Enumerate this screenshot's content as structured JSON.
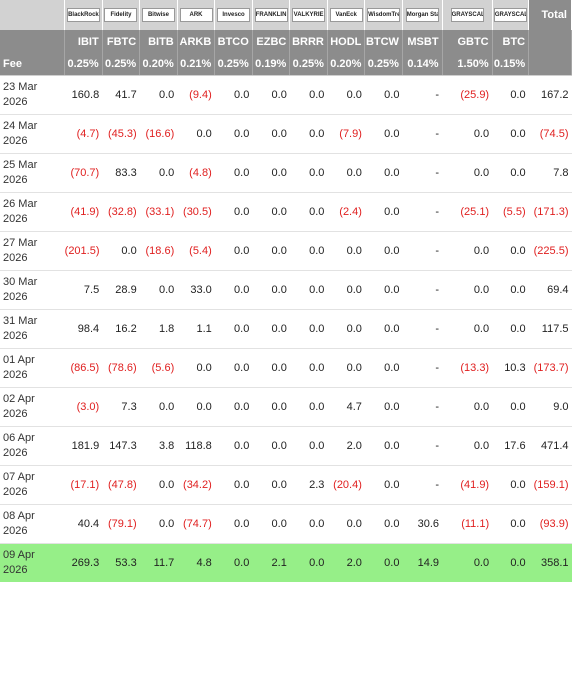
{
  "header": {
    "logos": [
      "BlackRock",
      "Fidelity",
      "Bitwise",
      "ARK",
      "Invesco",
      "FRANKLIN",
      "VALKYRIE",
      "VanEck",
      "WisdomTree",
      "Morgan Stanley",
      "GRAYSCALE",
      "GRAYSCALE"
    ],
    "total_label": "Total",
    "tickers": [
      "IBIT",
      "FBTC",
      "BITB",
      "ARKB",
      "BTCO",
      "EZBC",
      "BRRR",
      "HODL",
      "BTCW",
      "MSBT",
      "GBTC",
      "BTC"
    ],
    "fee_label": "Fee",
    "fees": [
      "0.25%",
      "0.25%",
      "0.20%",
      "0.21%",
      "0.25%",
      "0.19%",
      "0.25%",
      "0.20%",
      "0.25%",
      "0.14%",
      "1.50%",
      "0.15%"
    ]
  },
  "rows": [
    {
      "date_day": "23 Mar",
      "date_year": "2026",
      "values": [
        "160.8",
        "41.7",
        "0.0",
        "(9.4)",
        "0.0",
        "0.0",
        "0.0",
        "0.0",
        "0.0",
        "-",
        "(25.9)",
        "0.0"
      ],
      "total": "167.2"
    },
    {
      "date_day": "24 Mar",
      "date_year": "2026",
      "values": [
        "(4.7)",
        "(45.3)",
        "(16.6)",
        "0.0",
        "0.0",
        "0.0",
        "0.0",
        "(7.9)",
        "0.0",
        "-",
        "0.0",
        "0.0"
      ],
      "total": "(74.5)"
    },
    {
      "date_day": "25 Mar",
      "date_year": "2026",
      "values": [
        "(70.7)",
        "83.3",
        "0.0",
        "(4.8)",
        "0.0",
        "0.0",
        "0.0",
        "0.0",
        "0.0",
        "-",
        "0.0",
        "0.0"
      ],
      "total": "7.8"
    },
    {
      "date_day": "26 Mar",
      "date_year": "2026",
      "values": [
        "(41.9)",
        "(32.8)",
        "(33.1)",
        "(30.5)",
        "0.0",
        "0.0",
        "0.0",
        "(2.4)",
        "0.0",
        "-",
        "(25.1)",
        "(5.5)"
      ],
      "total": "(171.3)"
    },
    {
      "date_day": "27 Mar",
      "date_year": "2026",
      "values": [
        "(201.5)",
        "0.0",
        "(18.6)",
        "(5.4)",
        "0.0",
        "0.0",
        "0.0",
        "0.0",
        "0.0",
        "-",
        "0.0",
        "0.0"
      ],
      "total": "(225.5)"
    },
    {
      "date_day": "30 Mar",
      "date_year": "2026",
      "values": [
        "7.5",
        "28.9",
        "0.0",
        "33.0",
        "0.0",
        "0.0",
        "0.0",
        "0.0",
        "0.0",
        "-",
        "0.0",
        "0.0"
      ],
      "total": "69.4"
    },
    {
      "date_day": "31 Mar",
      "date_year": "2026",
      "values": [
        "98.4",
        "16.2",
        "1.8",
        "1.1",
        "0.0",
        "0.0",
        "0.0",
        "0.0",
        "0.0",
        "-",
        "0.0",
        "0.0"
      ],
      "total": "117.5"
    },
    {
      "date_day": "01 Apr",
      "date_year": "2026",
      "values": [
        "(86.5)",
        "(78.6)",
        "(5.6)",
        "0.0",
        "0.0",
        "0.0",
        "0.0",
        "0.0",
        "0.0",
        "-",
        "(13.3)",
        "10.3"
      ],
      "total": "(173.7)"
    },
    {
      "date_day": "02 Apr",
      "date_year": "2026",
      "values": [
        "(3.0)",
        "7.3",
        "0.0",
        "0.0",
        "0.0",
        "0.0",
        "0.0",
        "4.7",
        "0.0",
        "-",
        "0.0",
        "0.0"
      ],
      "total": "9.0"
    },
    {
      "date_day": "06 Apr",
      "date_year": "2026",
      "values": [
        "181.9",
        "147.3",
        "3.8",
        "118.8",
        "0.0",
        "0.0",
        "0.0",
        "2.0",
        "0.0",
        "-",
        "0.0",
        "17.6"
      ],
      "total": "471.4"
    },
    {
      "date_day": "07 Apr",
      "date_year": "2026",
      "values": [
        "(17.1)",
        "(47.8)",
        "0.0",
        "(34.2)",
        "0.0",
        "0.0",
        "2.3",
        "(20.4)",
        "0.0",
        "-",
        "(41.9)",
        "0.0"
      ],
      "total": "(159.1)"
    },
    {
      "date_day": "08 Apr",
      "date_year": "2026",
      "values": [
        "40.4",
        "(79.1)",
        "0.0",
        "(74.7)",
        "0.0",
        "0.0",
        "0.0",
        "0.0",
        "0.0",
        "30.6",
        "(11.1)",
        "0.0"
      ],
      "total": "(93.9)"
    },
    {
      "date_day": "09 Apr",
      "date_year": "2026",
      "values": [
        "269.3",
        "53.3",
        "11.7",
        "4.8",
        "0.0",
        "2.1",
        "0.0",
        "2.0",
        "0.0",
        "14.9",
        "0.0",
        "0.0"
      ],
      "total": "358.1",
      "highlight": true
    }
  ]
}
